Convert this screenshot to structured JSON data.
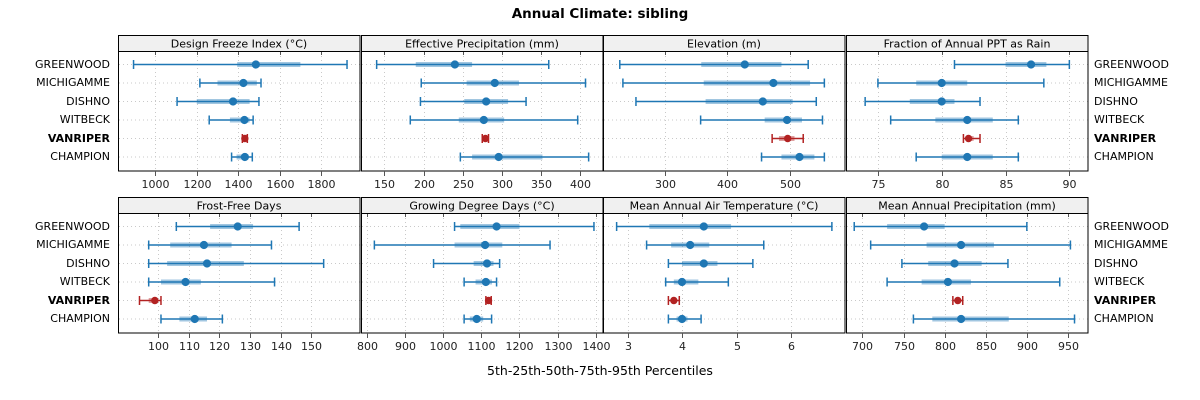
{
  "title": "Annual Climate: sibling",
  "caption": "5th-25th-50th-75th-95th Percentiles",
  "stations": [
    "GREENWOOD",
    "MICHIGAMME",
    "DISHNO",
    "WITBECK",
    "VANRIPER",
    "CHAMPION"
  ],
  "highlight_station": "VANRIPER",
  "colors": {
    "series_blue": "#1f77b4",
    "highlight_red": "#b22222",
    "strip_bg": "#f0f0f0",
    "grid": "#c9c9c9",
    "border": "#000000",
    "tick": "#555555",
    "tick_label": "#222222"
  },
  "chart_data": [
    {
      "type": "scatter",
      "subtype": "percentile-interval-dotplot",
      "title": "Design Freeze Index (°C)",
      "row": 0,
      "col": 0,
      "xlim": [
        820,
        1990
      ],
      "xticks": [
        1000,
        1200,
        1400,
        1600,
        1800
      ],
      "percentiles": [
        5,
        25,
        50,
        75,
        95
      ],
      "series": [
        {
          "name": "GREENWOOD",
          "values": [
            895,
            1395,
            1485,
            1700,
            1925
          ]
        },
        {
          "name": "MICHIGAMME",
          "values": [
            1215,
            1300,
            1425,
            1490,
            1510
          ]
        },
        {
          "name": "DISHNO",
          "values": [
            1105,
            1200,
            1375,
            1455,
            1500
          ]
        },
        {
          "name": "WITBECK",
          "values": [
            1260,
            1360,
            1430,
            1455,
            1472
          ]
        },
        {
          "name": "VANRIPER",
          "values": [
            1420,
            1426,
            1432,
            1438,
            1444
          ]
        },
        {
          "name": "CHAMPION",
          "values": [
            1368,
            1392,
            1432,
            1450,
            1468
          ]
        }
      ]
    },
    {
      "type": "scatter",
      "subtype": "percentile-interval-dotplot",
      "title": "Effective Precipitation (mm)",
      "row": 0,
      "col": 1,
      "xlim": [
        120,
        430
      ],
      "xticks": [
        150,
        200,
        250,
        300,
        350,
        400
      ],
      "percentiles": [
        5,
        25,
        50,
        75,
        95
      ],
      "series": [
        {
          "name": "GREENWOOD",
          "values": [
            140,
            190,
            240,
            262,
            360
          ]
        },
        {
          "name": "MICHIGAMME",
          "values": [
            197,
            255,
            291,
            322,
            407
          ]
        },
        {
          "name": "DISHNO",
          "values": [
            196,
            252,
            280,
            308,
            331
          ]
        },
        {
          "name": "WITBECK",
          "values": [
            183,
            245,
            277,
            303,
            397
          ]
        },
        {
          "name": "VANRIPER",
          "values": [
            275,
            277,
            279,
            281,
            283
          ]
        },
        {
          "name": "CHAMPION",
          "values": [
            247,
            262,
            296,
            352,
            411
          ]
        }
      ]
    },
    {
      "type": "scatter",
      "subtype": "percentile-interval-dotplot",
      "title": "Elevation (m)",
      "row": 0,
      "col": 2,
      "xlim": [
        200,
        590
      ],
      "xticks": [
        300,
        400,
        500
      ],
      "percentiles": [
        5,
        25,
        50,
        75,
        95
      ],
      "series": [
        {
          "name": "GREENWOOD",
          "values": [
            227,
            358,
            428,
            487,
            530
          ]
        },
        {
          "name": "MICHIGAMME",
          "values": [
            232,
            362,
            474,
            533,
            556
          ]
        },
        {
          "name": "DISHNO",
          "values": [
            253,
            365,
            457,
            505,
            543
          ]
        },
        {
          "name": "WITBECK",
          "values": [
            357,
            460,
            496,
            520,
            553
          ]
        },
        {
          "name": "VANRIPER",
          "values": [
            472,
            483,
            497,
            508,
            522
          ]
        },
        {
          "name": "CHAMPION",
          "values": [
            455,
            487,
            516,
            540,
            556
          ]
        }
      ]
    },
    {
      "type": "scatter",
      "subtype": "percentile-interval-dotplot",
      "title": "Fraction of Annual PPT as Rain",
      "row": 0,
      "col": 3,
      "xlim": [
        72.5,
        91.5
      ],
      "xticks": [
        75,
        80,
        85,
        90
      ],
      "percentiles": [
        5,
        25,
        50,
        75,
        95
      ],
      "series": [
        {
          "name": "GREENWOOD",
          "values": [
            81,
            85,
            87,
            88.2,
            90
          ]
        },
        {
          "name": "MICHIGAMME",
          "values": [
            75,
            78,
            80,
            82,
            88
          ]
        },
        {
          "name": "DISHNO",
          "values": [
            74,
            77.5,
            80,
            81,
            83
          ]
        },
        {
          "name": "WITBECK",
          "values": [
            76,
            79.5,
            82,
            84,
            86
          ]
        },
        {
          "name": "VANRIPER",
          "values": [
            81.7,
            81.9,
            82.1,
            82.5,
            83
          ]
        },
        {
          "name": "CHAMPION",
          "values": [
            78,
            80,
            82,
            84,
            86
          ]
        }
      ]
    },
    {
      "type": "scatter",
      "subtype": "percentile-interval-dotplot",
      "title": "Frost-Free Days",
      "row": 1,
      "col": 0,
      "xlim": [
        87,
        166
      ],
      "xticks": [
        100,
        110,
        120,
        130,
        140,
        150
      ],
      "percentiles": [
        5,
        25,
        50,
        75,
        95
      ],
      "series": [
        {
          "name": "GREENWOOD",
          "values": [
            106,
            117,
            126,
            131,
            146
          ]
        },
        {
          "name": "MICHIGAMME",
          "values": [
            97,
            104,
            115,
            124,
            137
          ]
        },
        {
          "name": "DISHNO",
          "values": [
            97,
            103,
            116,
            128,
            154
          ]
        },
        {
          "name": "WITBECK",
          "values": [
            97,
            101,
            109,
            114,
            138
          ]
        },
        {
          "name": "VANRIPER",
          "values": [
            94,
            97,
            99,
            100,
            101
          ]
        },
        {
          "name": "CHAMPION",
          "values": [
            101,
            107,
            112,
            116,
            121
          ]
        }
      ]
    },
    {
      "type": "scatter",
      "subtype": "percentile-interval-dotplot",
      "title": "Growing Degree Days (°C)",
      "row": 1,
      "col": 1,
      "xlim": [
        785,
        1420
      ],
      "xticks": [
        800,
        900,
        1000,
        1100,
        1200,
        1300,
        1400
      ],
      "percentiles": [
        5,
        25,
        50,
        75,
        95
      ],
      "series": [
        {
          "name": "GREENWOOD",
          "values": [
            1030,
            1045,
            1140,
            1200,
            1395
          ]
        },
        {
          "name": "MICHIGAMME",
          "values": [
            820,
            1030,
            1110,
            1155,
            1280
          ]
        },
        {
          "name": "DISHNO",
          "values": [
            975,
            1080,
            1115,
            1132,
            1148
          ]
        },
        {
          "name": "WITBECK",
          "values": [
            1055,
            1085,
            1112,
            1128,
            1140
          ]
        },
        {
          "name": "VANRIPER",
          "values": [
            1112,
            1116,
            1119,
            1122,
            1126
          ]
        },
        {
          "name": "CHAMPION",
          "values": [
            1055,
            1070,
            1088,
            1105,
            1127
          ]
        }
      ]
    },
    {
      "type": "scatter",
      "subtype": "percentile-interval-dotplot",
      "title": "Mean Annual Air Temperature (°C)",
      "row": 1,
      "col": 2,
      "xlim": [
        2.55,
        7.0
      ],
      "xticks": [
        3,
        4,
        5,
        6
      ],
      "percentiles": [
        5,
        25,
        50,
        75,
        95
      ],
      "series": [
        {
          "name": "GREENWOOD",
          "values": [
            2.8,
            3.4,
            4.4,
            4.9,
            6.75
          ]
        },
        {
          "name": "MICHIGAMME",
          "values": [
            3.35,
            3.8,
            4.15,
            4.5,
            5.5
          ]
        },
        {
          "name": "DISHNO",
          "values": [
            3.75,
            4.0,
            4.4,
            4.65,
            5.3
          ]
        },
        {
          "name": "WITBECK",
          "values": [
            3.7,
            3.85,
            4.0,
            4.3,
            4.85
          ]
        },
        {
          "name": "VANRIPER",
          "values": [
            3.75,
            3.8,
            3.85,
            3.9,
            3.95
          ]
        },
        {
          "name": "CHAMPION",
          "values": [
            3.75,
            3.9,
            4.0,
            4.1,
            4.35
          ]
        }
      ]
    },
    {
      "type": "scatter",
      "subtype": "percentile-interval-dotplot",
      "title": "Mean Annual Precipitation (mm)",
      "row": 1,
      "col": 3,
      "xlim": [
        680,
        975
      ],
      "xticks": [
        700,
        750,
        800,
        850,
        900,
        950
      ],
      "percentiles": [
        5,
        25,
        50,
        75,
        95
      ],
      "series": [
        {
          "name": "GREENWOOD",
          "values": [
            690,
            730,
            775,
            800,
            900
          ]
        },
        {
          "name": "MICHIGAMME",
          "values": [
            710,
            778,
            820,
            860,
            953
          ]
        },
        {
          "name": "DISHNO",
          "values": [
            748,
            780,
            812,
            845,
            877
          ]
        },
        {
          "name": "WITBECK",
          "values": [
            730,
            772,
            804,
            832,
            940
          ]
        },
        {
          "name": "VANRIPER",
          "values": [
            810,
            813,
            816,
            819,
            822
          ]
        },
        {
          "name": "CHAMPION",
          "values": [
            762,
            785,
            820,
            878,
            958
          ]
        }
      ]
    }
  ]
}
